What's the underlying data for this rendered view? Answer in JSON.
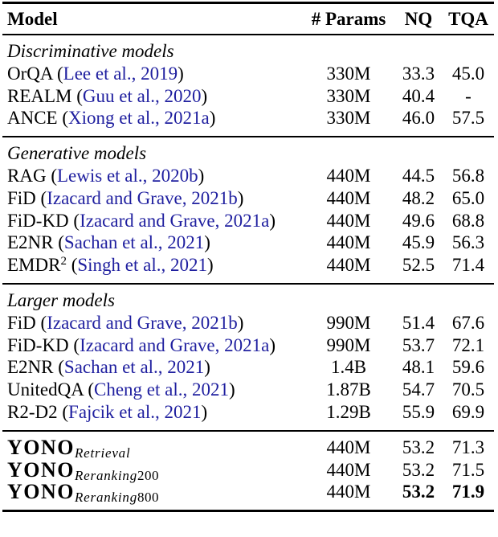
{
  "colors": {
    "background": "#ffffff",
    "text": "#000000",
    "rule": "#000000",
    "citation_link": "#1f1f9f"
  },
  "table": {
    "columns": [
      "Model",
      "# Params",
      "NQ",
      "TQA"
    ],
    "sections": [
      {
        "label": "Discriminative models",
        "rows": [
          {
            "model": "OrQA",
            "citation": "Lee et al., 2019",
            "params": "330M",
            "nq": "33.3",
            "tqa": "45.0"
          },
          {
            "model": "REALM",
            "citation": "Guu et al., 2020",
            "params": "330M",
            "nq": "40.4",
            "tqa": "-"
          },
          {
            "model": "ANCE",
            "citation": "Xiong et al., 2021a",
            "params": "330M",
            "nq": "46.0",
            "tqa": "57.5"
          }
        ]
      },
      {
        "label": "Generative models",
        "rows": [
          {
            "model": "RAG",
            "citation": "Lewis et al., 2020b",
            "params": "440M",
            "nq": "44.5",
            "tqa": "56.8"
          },
          {
            "model": "FiD",
            "citation": "Izacard and Grave, 2021b",
            "params": "440M",
            "nq": "48.2",
            "tqa": "65.0"
          },
          {
            "model": "FiD-KD",
            "citation": "Izacard and Grave, 2021a",
            "params": "440M",
            "nq": "49.6",
            "tqa": "68.8"
          },
          {
            "model": "E2NR",
            "citation": "Sachan et al., 2021",
            "params": "440M",
            "nq": "45.9",
            "tqa": "56.3"
          },
          {
            "model": "EMDR",
            "superscript": "2",
            "citation": "Singh et al., 2021",
            "params": "440M",
            "nq": "52.5",
            "tqa": "71.4"
          }
        ]
      },
      {
        "label": "Larger models",
        "rows": [
          {
            "model": "FiD",
            "citation": "Izacard and Grave, 2021b",
            "params": "990M",
            "nq": "51.4",
            "tqa": "67.6"
          },
          {
            "model": "FiD-KD",
            "citation": "Izacard and Grave, 2021a",
            "params": "990M",
            "nq": "53.7",
            "tqa": "72.1"
          },
          {
            "model": "E2NR",
            "citation": "Sachan et al., 2021",
            "params": "1.4B",
            "nq": "48.1",
            "tqa": "59.6"
          },
          {
            "model": "UnitedQA",
            "citation": "Cheng et al., 2021",
            "params": "1.87B",
            "nq": "54.7",
            "tqa": "70.5"
          },
          {
            "model": "R2-D2",
            "citation": "Fajcik et al., 2021",
            "params": "1.29B",
            "nq": "55.9",
            "tqa": "69.9"
          }
        ]
      },
      {
        "label": "",
        "rows": [
          {
            "model": "YONO",
            "bold_model": true,
            "subscript_italic": "Retrieval",
            "subscript_roman": "",
            "params": "440M",
            "nq": "53.2",
            "tqa": "71.3"
          },
          {
            "model": "YONO",
            "bold_model": true,
            "subscript_italic": "Reranking",
            "subscript_roman": "200",
            "params": "440M",
            "nq": "53.2",
            "tqa": "71.5"
          },
          {
            "model": "YONO",
            "bold_model": true,
            "subscript_italic": "Reranking",
            "subscript_roman": "800",
            "params": "440M",
            "nq": "53.2",
            "tqa": "71.9",
            "bold_metrics": true
          }
        ]
      }
    ]
  }
}
